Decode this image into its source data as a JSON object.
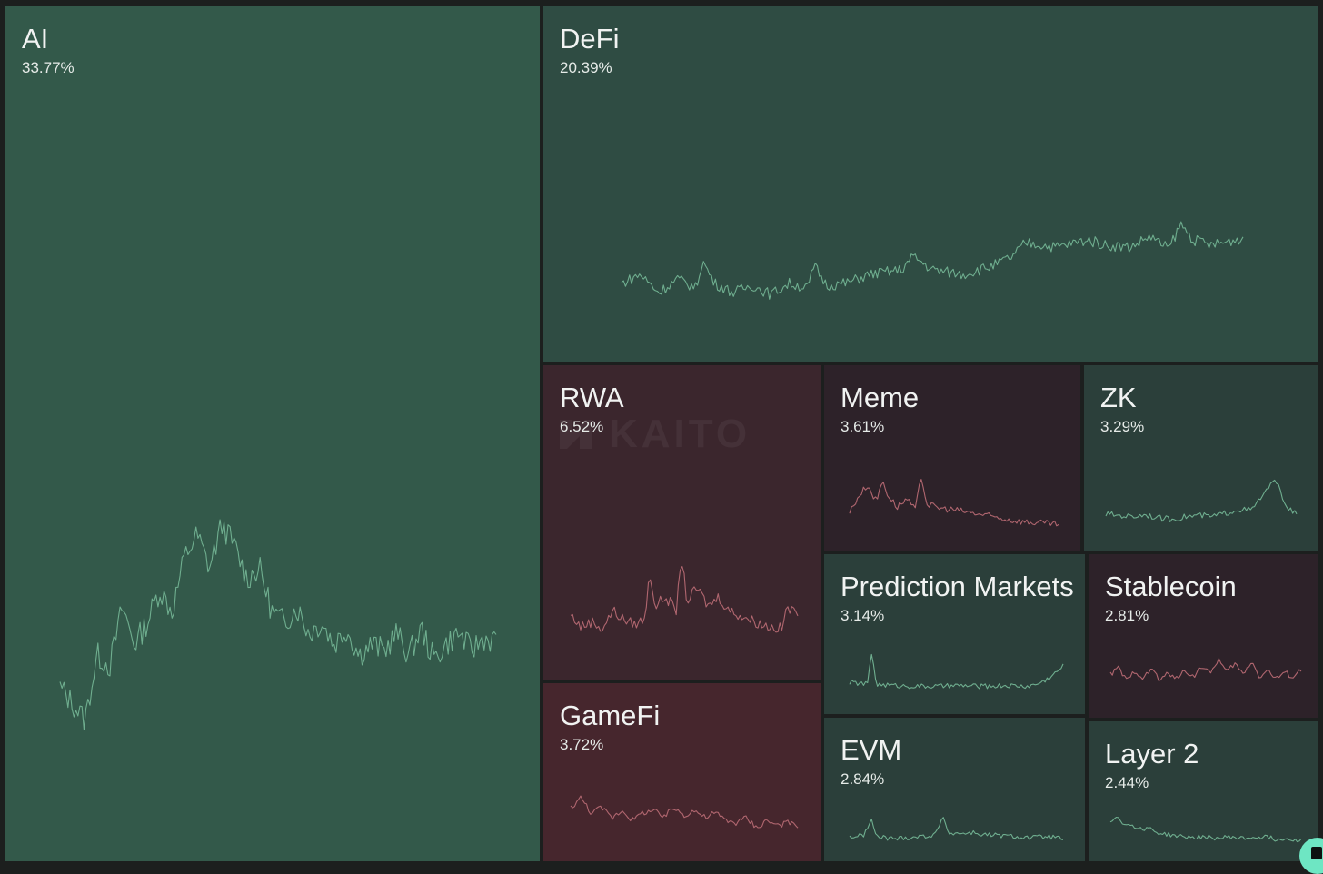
{
  "chart_data": {
    "type": "treemap",
    "title": "",
    "watermark": "KAITO",
    "colors": {
      "background": "#1c1f1e",
      "positive_strong": "#33594a",
      "positive_medium": "#2f4c43",
      "positive_weak": "#2b3f3a",
      "negative_weak": "#2d2229",
      "negative_medium": "#3b262d",
      "negative_strong": "#46262d",
      "line_positive": "#6fae8f",
      "line_negative": "#b0666f"
    },
    "tiles": [
      {
        "name": "AI",
        "share": "33.77%",
        "trend": "positive",
        "shape": [
          [
            0,
            0.25
          ],
          [
            2,
            0.18
          ],
          [
            4,
            0.1
          ],
          [
            6,
            0.4
          ],
          [
            8,
            0.35
          ],
          [
            10,
            0.62
          ],
          [
            12,
            0.45
          ],
          [
            14,
            0.55
          ],
          [
            16,
            0.7
          ],
          [
            18,
            0.6
          ],
          [
            20,
            0.85
          ],
          [
            22,
            0.95
          ],
          [
            24,
            0.8
          ],
          [
            26,
            1.0
          ],
          [
            28,
            0.9
          ],
          [
            30,
            0.75
          ],
          [
            32,
            0.8
          ],
          [
            34,
            0.6
          ],
          [
            36,
            0.55
          ],
          [
            38,
            0.62
          ],
          [
            40,
            0.5
          ],
          [
            42,
            0.55
          ],
          [
            44,
            0.45
          ],
          [
            46,
            0.52
          ],
          [
            48,
            0.4
          ],
          [
            50,
            0.45
          ],
          [
            52,
            0.42
          ],
          [
            54,
            0.5
          ],
          [
            56,
            0.4
          ],
          [
            58,
            0.52
          ],
          [
            60,
            0.38
          ],
          [
            62,
            0.45
          ],
          [
            64,
            0.5
          ],
          [
            66,
            0.42
          ],
          [
            68,
            0.48
          ],
          [
            70,
            0.46
          ]
        ]
      },
      {
        "name": "DeFi",
        "share": "20.39%",
        "trend": "positive",
        "shape": [
          [
            0,
            0.3
          ],
          [
            3,
            0.4
          ],
          [
            6,
            0.2
          ],
          [
            9,
            0.35
          ],
          [
            12,
            0.25
          ],
          [
            13,
            0.55
          ],
          [
            15,
            0.3
          ],
          [
            18,
            0.2
          ],
          [
            21,
            0.28
          ],
          [
            24,
            0.18
          ],
          [
            27,
            0.3
          ],
          [
            30,
            0.25
          ],
          [
            31,
            0.5
          ],
          [
            33,
            0.28
          ],
          [
            36,
            0.3
          ],
          [
            40,
            0.4
          ],
          [
            45,
            0.45
          ],
          [
            47,
            0.6
          ],
          [
            50,
            0.45
          ],
          [
            55,
            0.4
          ],
          [
            60,
            0.5
          ],
          [
            63,
            0.6
          ],
          [
            65,
            0.75
          ],
          [
            70,
            0.7
          ],
          [
            75,
            0.78
          ],
          [
            78,
            0.72
          ],
          [
            82,
            0.7
          ],
          [
            85,
            0.82
          ],
          [
            88,
            0.68
          ],
          [
            90,
            0.95
          ],
          [
            92,
            0.78
          ],
          [
            95,
            0.72
          ],
          [
            100,
            0.8
          ]
        ]
      },
      {
        "name": "RWA",
        "share": "6.52%",
        "trend": "negative",
        "shape": [
          [
            0,
            0.25
          ],
          [
            4,
            0.12
          ],
          [
            8,
            0.18
          ],
          [
            12,
            0.1
          ],
          [
            16,
            0.3
          ],
          [
            20,
            0.2
          ],
          [
            24,
            0.15
          ],
          [
            28,
            0.2
          ],
          [
            30,
            0.72
          ],
          [
            32,
            0.35
          ],
          [
            36,
            0.45
          ],
          [
            40,
            0.3
          ],
          [
            42,
            0.9
          ],
          [
            44,
            0.4
          ],
          [
            48,
            0.55
          ],
          [
            52,
            0.35
          ],
          [
            56,
            0.45
          ],
          [
            60,
            0.3
          ],
          [
            64,
            0.25
          ],
          [
            68,
            0.2
          ],
          [
            72,
            0.15
          ],
          [
            76,
            0.12
          ],
          [
            80,
            0.1
          ],
          [
            82,
            0.35
          ],
          [
            84,
            0.28
          ],
          [
            86,
            0.3
          ]
        ]
      },
      {
        "name": "Meme",
        "share": "3.61%",
        "trend": "negative",
        "shape": [
          [
            0,
            0.3
          ],
          [
            3,
            0.6
          ],
          [
            6,
            0.8
          ],
          [
            9,
            0.5
          ],
          [
            11,
            0.9
          ],
          [
            13,
            0.6
          ],
          [
            16,
            0.4
          ],
          [
            19,
            0.55
          ],
          [
            22,
            0.35
          ],
          [
            24,
            0.95
          ],
          [
            26,
            0.45
          ],
          [
            30,
            0.38
          ],
          [
            35,
            0.35
          ],
          [
            40,
            0.3
          ],
          [
            45,
            0.25
          ],
          [
            50,
            0.2
          ],
          [
            55,
            0.15
          ],
          [
            60,
            0.12
          ],
          [
            65,
            0.1
          ],
          [
            70,
            0.08
          ]
        ]
      },
      {
        "name": "ZK",
        "share": "3.29%",
        "trend": "positive",
        "shape": [
          [
            0,
            0.2
          ],
          [
            5,
            0.18
          ],
          [
            10,
            0.15
          ],
          [
            15,
            0.2
          ],
          [
            20,
            0.12
          ],
          [
            25,
            0.1
          ],
          [
            30,
            0.15
          ],
          [
            35,
            0.18
          ],
          [
            40,
            0.15
          ],
          [
            45,
            0.22
          ],
          [
            50,
            0.3
          ],
          [
            55,
            0.28
          ],
          [
            58,
            0.5
          ],
          [
            62,
            0.75
          ],
          [
            64,
            0.95
          ],
          [
            66,
            0.6
          ],
          [
            68,
            0.4
          ],
          [
            70,
            0.25
          ],
          [
            72,
            0.2
          ]
        ]
      },
      {
        "name": "Prediction Markets",
        "share": "3.14%",
        "trend": "positive",
        "shape": [
          [
            0,
            0.2
          ],
          [
            8,
            0.15
          ],
          [
            10,
            0.95
          ],
          [
            12,
            0.15
          ],
          [
            20,
            0.12
          ],
          [
            30,
            0.1
          ],
          [
            40,
            0.1
          ],
          [
            50,
            0.12
          ],
          [
            60,
            0.1
          ],
          [
            70,
            0.12
          ],
          [
            80,
            0.1
          ],
          [
            84,
            0.15
          ],
          [
            88,
            0.25
          ],
          [
            92,
            0.4
          ],
          [
            96,
            0.6
          ]
        ]
      },
      {
        "name": "Stablecoin",
        "share": "2.81%",
        "trend": "negative",
        "shape": [
          [
            0,
            0.45
          ],
          [
            4,
            0.6
          ],
          [
            8,
            0.3
          ],
          [
            12,
            0.55
          ],
          [
            16,
            0.35
          ],
          [
            20,
            0.6
          ],
          [
            24,
            0.3
          ],
          [
            28,
            0.5
          ],
          [
            32,
            0.35
          ],
          [
            36,
            0.55
          ],
          [
            40,
            0.4
          ],
          [
            44,
            0.65
          ],
          [
            48,
            0.45
          ],
          [
            52,
            0.8
          ],
          [
            56,
            0.5
          ],
          [
            60,
            0.7
          ],
          [
            64,
            0.45
          ],
          [
            68,
            0.75
          ],
          [
            72,
            0.4
          ],
          [
            76,
            0.55
          ],
          [
            80,
            0.35
          ],
          [
            84,
            0.5
          ],
          [
            88,
            0.4
          ],
          [
            92,
            0.55
          ]
        ]
      },
      {
        "name": "GameFi",
        "share": "3.72%",
        "trend": "negative",
        "shape": [
          [
            0,
            0.6
          ],
          [
            4,
            0.8
          ],
          [
            8,
            0.5
          ],
          [
            12,
            0.6
          ],
          [
            16,
            0.4
          ],
          [
            20,
            0.55
          ],
          [
            24,
            0.35
          ],
          [
            28,
            0.5
          ],
          [
            32,
            0.55
          ],
          [
            36,
            0.4
          ],
          [
            40,
            0.6
          ],
          [
            44,
            0.45
          ],
          [
            48,
            0.55
          ],
          [
            52,
            0.4
          ],
          [
            56,
            0.5
          ],
          [
            60,
            0.35
          ],
          [
            64,
            0.3
          ],
          [
            68,
            0.4
          ],
          [
            72,
            0.2
          ],
          [
            76,
            0.35
          ],
          [
            80,
            0.25
          ],
          [
            84,
            0.3
          ],
          [
            88,
            0.22
          ]
        ]
      },
      {
        "name": "EVM",
        "share": "2.84%",
        "trend": "positive",
        "shape": [
          [
            0,
            0.2
          ],
          [
            6,
            0.22
          ],
          [
            10,
            0.6
          ],
          [
            12,
            0.2
          ],
          [
            20,
            0.15
          ],
          [
            30,
            0.2
          ],
          [
            36,
            0.22
          ],
          [
            40,
            0.35
          ],
          [
            42,
            0.75
          ],
          [
            44,
            0.3
          ],
          [
            50,
            0.28
          ],
          [
            56,
            0.3
          ],
          [
            60,
            0.25
          ],
          [
            70,
            0.22
          ],
          [
            80,
            0.18
          ],
          [
            90,
            0.2
          ],
          [
            96,
            0.15
          ]
        ]
      },
      {
        "name": "Layer 2",
        "share": "2.44%",
        "trend": "positive",
        "shape": [
          [
            0,
            0.6
          ],
          [
            3,
            0.8
          ],
          [
            6,
            0.5
          ],
          [
            9,
            0.55
          ],
          [
            12,
            0.4
          ],
          [
            16,
            0.45
          ],
          [
            20,
            0.3
          ],
          [
            25,
            0.25
          ],
          [
            30,
            0.2
          ],
          [
            35,
            0.18
          ],
          [
            40,
            0.2
          ],
          [
            45,
            0.15
          ],
          [
            50,
            0.2
          ],
          [
            55,
            0.15
          ],
          [
            60,
            0.18
          ],
          [
            65,
            0.2
          ],
          [
            70,
            0.12
          ],
          [
            75,
            0.15
          ],
          [
            80,
            0.1
          ]
        ]
      }
    ]
  },
  "corner_button": {
    "icon": "chat-bubble-icon"
  }
}
